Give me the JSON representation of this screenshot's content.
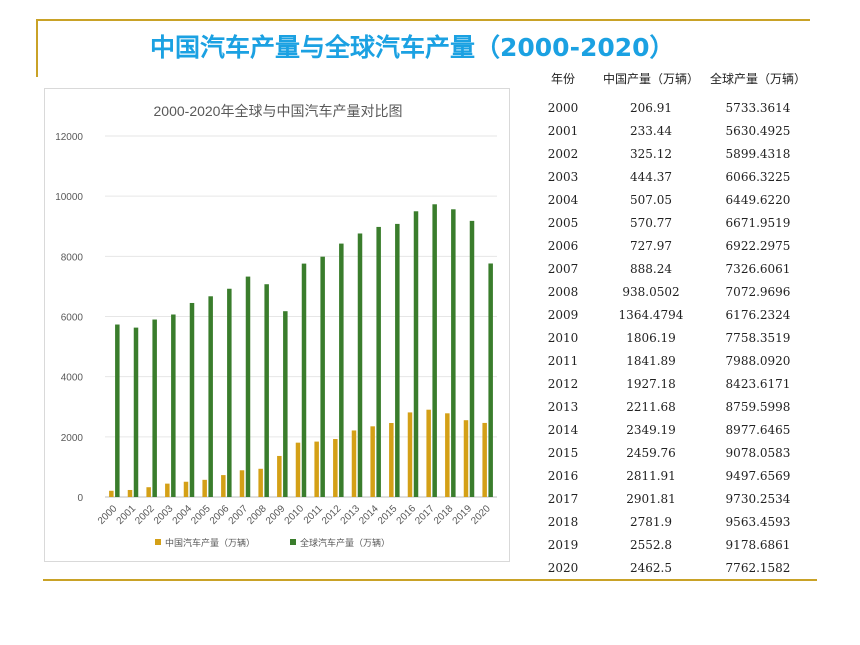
{
  "slide": {
    "title": "中国汽车产量与全球汽车产量（2000-2020）"
  },
  "table": {
    "headers": [
      "年份",
      "中国产量（万辆）",
      "全球产量（万辆）"
    ],
    "rows": [
      [
        "2000",
        "206.91",
        "5733.3614"
      ],
      [
        "2001",
        "233.44",
        "5630.4925"
      ],
      [
        "2002",
        "325.12",
        "5899.4318"
      ],
      [
        "2003",
        "444.37",
        "6066.3225"
      ],
      [
        "2004",
        "507.05",
        "6449.6220"
      ],
      [
        "2005",
        "570.77",
        "6671.9519"
      ],
      [
        "2006",
        "727.97",
        "6922.2975"
      ],
      [
        "2007",
        "888.24",
        "7326.6061"
      ],
      [
        "2008",
        "938.0502",
        "7072.9696"
      ],
      [
        "2009",
        "1364.4794",
        "6176.2324"
      ],
      [
        "2010",
        "1806.19",
        "7758.3519"
      ],
      [
        "2011",
        "1841.89",
        "7988.0920"
      ],
      [
        "2012",
        "1927.18",
        "8423.6171"
      ],
      [
        "2013",
        "2211.68",
        "8759.5998"
      ],
      [
        "2014",
        "2349.19",
        "8977.6465"
      ],
      [
        "2015",
        "2459.76",
        "9078.0583"
      ],
      [
        "2016",
        "2811.91",
        "9497.6569"
      ],
      [
        "2017",
        "2901.81",
        "9730.2534"
      ],
      [
        "2018",
        "2781.9",
        "9563.4593"
      ],
      [
        "2019",
        "2552.8",
        "9178.6861"
      ],
      [
        "2020",
        "2462.5",
        "7762.1582"
      ]
    ]
  },
  "colors": {
    "accent_line": "#c9a227",
    "title": "#1ba1e2",
    "china": "#d4a017",
    "global": "#3a7d2c"
  },
  "chart_data": {
    "type": "bar",
    "title": "2000-2020年全球与中国汽车产量对比图",
    "xlabel": "",
    "ylabel": "",
    "categories": [
      "2000",
      "2001",
      "2002",
      "2003",
      "2004",
      "2005",
      "2006",
      "2007",
      "2008",
      "2009",
      "2010",
      "2011",
      "2012",
      "2013",
      "2014",
      "2015",
      "2016",
      "2017",
      "2018",
      "2019",
      "2020"
    ],
    "series": [
      {
        "name": "中国汽车产量（万辆）",
        "color": "#d4a017",
        "values": [
          206.91,
          233.44,
          325.12,
          444.37,
          507.05,
          570.77,
          727.97,
          888.24,
          938.0502,
          1364.4794,
          1806.19,
          1841.89,
          1927.18,
          2211.68,
          2349.19,
          2459.76,
          2811.91,
          2901.81,
          2781.9,
          2552.8,
          2462.5
        ]
      },
      {
        "name": "全球汽车产量（万辆）",
        "color": "#3a7d2c",
        "values": [
          5733.3614,
          5630.4925,
          5899.4318,
          6066.3225,
          6449.622,
          6671.9519,
          6922.2975,
          7326.6061,
          7072.9696,
          6176.2324,
          7758.3519,
          7988.092,
          8423.6171,
          8759.5998,
          8977.6465,
          9078.0583,
          9497.6569,
          9730.2534,
          9563.4593,
          9178.6861,
          7762.1582
        ]
      }
    ],
    "ylim": [
      0,
      12000
    ],
    "yticks": [
      0,
      2000,
      4000,
      6000,
      8000,
      10000,
      12000
    ],
    "grid": true,
    "legend": "bottom"
  }
}
